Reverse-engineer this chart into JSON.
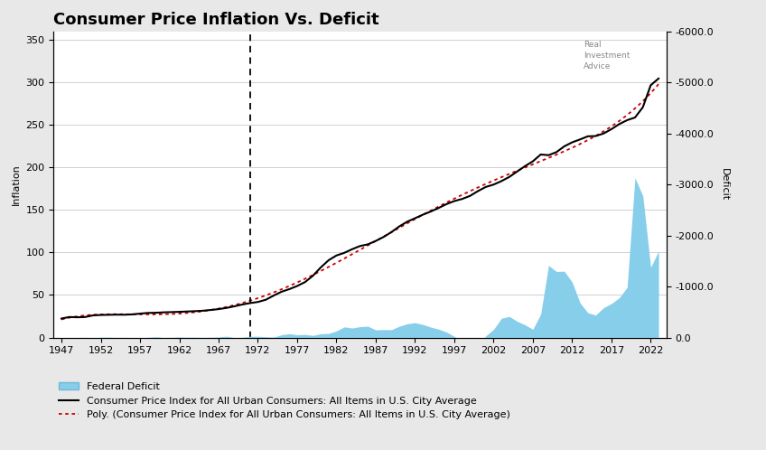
{
  "title": "Consumer Price Inflation Vs. Deficit",
  "ylabel_left": "Inflation",
  "ylabel_right": "Deficit",
  "background_color": "#e8e8e8",
  "plot_bg_color": "#ffffff",
  "cpi_years": [
    1947,
    1948,
    1949,
    1950,
    1951,
    1952,
    1953,
    1954,
    1955,
    1956,
    1957,
    1958,
    1959,
    1960,
    1961,
    1962,
    1963,
    1964,
    1965,
    1966,
    1967,
    1968,
    1969,
    1970,
    1971,
    1972,
    1973,
    1974,
    1975,
    1976,
    1977,
    1978,
    1979,
    1980,
    1981,
    1982,
    1983,
    1984,
    1985,
    1986,
    1987,
    1988,
    1989,
    1990,
    1991,
    1992,
    1993,
    1994,
    1995,
    1996,
    1997,
    1998,
    1999,
    2000,
    2001,
    2002,
    2003,
    2004,
    2005,
    2006,
    2007,
    2008,
    2009,
    2010,
    2011,
    2012,
    2013,
    2014,
    2015,
    2016,
    2017,
    2018,
    2019,
    2020,
    2021,
    2022,
    2023
  ],
  "cpi_values": [
    22.3,
    24.1,
    23.8,
    24.1,
    26.0,
    26.5,
    26.7,
    26.9,
    26.8,
    27.2,
    28.1,
    28.9,
    29.1,
    29.6,
    29.9,
    30.2,
    30.6,
    31.0,
    31.5,
    32.4,
    33.4,
    34.8,
    36.7,
    38.8,
    40.5,
    41.8,
    44.4,
    49.3,
    53.8,
    56.9,
    60.6,
    65.2,
    72.6,
    82.4,
    90.9,
    96.5,
    99.6,
    103.9,
    107.6,
    109.6,
    113.6,
    118.3,
    124.0,
    130.7,
    136.2,
    140.3,
    144.5,
    148.2,
    152.4,
    156.9,
    160.5,
    163.0,
    166.6,
    172.2,
    177.1,
    179.9,
    184.0,
    188.9,
    195.3,
    201.6,
    207.3,
    215.3,
    214.5,
    218.1,
    224.9,
    229.6,
    233.0,
    236.7,
    237.0,
    240.0,
    245.1,
    251.1,
    255.7,
    258.8,
    270.9,
    296.8,
    304.7
  ],
  "deficit_years": [
    1947,
    1948,
    1949,
    1950,
    1951,
    1952,
    1953,
    1954,
    1955,
    1956,
    1957,
    1958,
    1959,
    1960,
    1961,
    1962,
    1963,
    1964,
    1965,
    1966,
    1967,
    1968,
    1969,
    1970,
    1971,
    1972,
    1973,
    1974,
    1975,
    1976,
    1977,
    1978,
    1979,
    1980,
    1981,
    1982,
    1983,
    1984,
    1985,
    1986,
    1987,
    1988,
    1989,
    1990,
    1991,
    1992,
    1993,
    1994,
    1995,
    1996,
    1997,
    1998,
    1999,
    2000,
    2001,
    2002,
    2003,
    2004,
    2005,
    2006,
    2007,
    2008,
    2009,
    2010,
    2011,
    2012,
    2013,
    2014,
    2015,
    2016,
    2017,
    2018,
    2019,
    2020,
    2021,
    2022,
    2023
  ],
  "deficit_values": [
    6.0,
    12.0,
    0.0,
    -3.0,
    6.0,
    -4.0,
    -6.0,
    -1.0,
    -3.0,
    4.0,
    3.0,
    -3.0,
    -13.0,
    0.3,
    -3.4,
    -7.1,
    -4.8,
    -5.9,
    -1.4,
    -3.7,
    -8.7,
    -25.2,
    3.2,
    -2.8,
    -23.0,
    -23.4,
    -14.9,
    -6.1,
    -53.2,
    -73.7,
    -53.7,
    -59.2,
    -40.7,
    -73.8,
    -79.0,
    -128.0,
    -207.8,
    -185.4,
    -212.3,
    -221.2,
    -149.7,
    -155.2,
    -152.6,
    -221.0,
    -269.2,
    -290.3,
    -255.1,
    -203.2,
    -163.9,
    -107.4,
    -21.9,
    69.3,
    125.6,
    236.2,
    -32.4,
    -157.8,
    -377.6,
    -412.7,
    -318.3,
    -248.2,
    -160.7,
    -458.6,
    -1412.7,
    -1294.4,
    -1299.6,
    -1087.0,
    -679.5,
    -484.6,
    -439.1,
    -584.6,
    -665.7,
    -779.0,
    -984.4,
    -3131.9,
    -2775.6,
    -1375.2,
    -1695.0
  ],
  "vline_year": 1971,
  "ylim_left": [
    0,
    360
  ],
  "ylim_right_top": 0.0,
  "ylim_right_bottom": -6000.0,
  "yticks_left": [
    0,
    50,
    100,
    150,
    200,
    250,
    300,
    350
  ],
  "yticks_right": [
    0.0,
    -1000.0,
    -2000.0,
    -3000.0,
    -4000.0,
    -5000.0,
    -6000.0
  ],
  "xticks": [
    1947,
    1952,
    1957,
    1962,
    1967,
    1972,
    1977,
    1982,
    1987,
    1992,
    1997,
    2002,
    2007,
    2012,
    2017,
    2022
  ],
  "poly_degree": 5,
  "cpi_color": "#000000",
  "deficit_fill_color": "#87ceeb",
  "poly_color": "#cc0000",
  "vline_color": "#000000",
  "grid_color": "#d0d0d0",
  "title_fontsize": 13,
  "axis_label_fontsize": 8,
  "tick_fontsize": 8,
  "legend_fontsize": 8,
  "xlim": [
    1946,
    2024
  ]
}
